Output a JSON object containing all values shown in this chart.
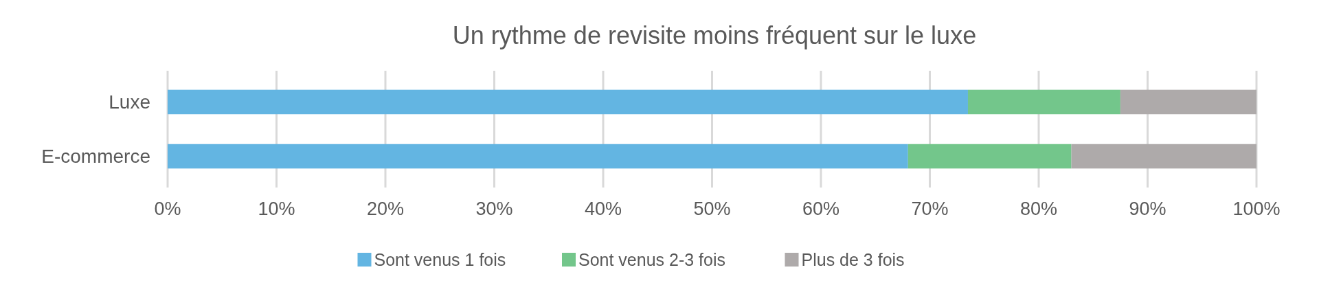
{
  "chart_data": {
    "type": "bar",
    "orientation": "horizontal",
    "stacked": true,
    "title": "Un rythme de revisite moins fréquent sur le luxe",
    "categories": [
      "Luxe",
      "E-commerce"
    ],
    "series": [
      {
        "name": "Sont venus 1 fois",
        "color": "#63b5e2",
        "values": [
          73.5,
          68
        ]
      },
      {
        "name": "Sont venus 2-3 fois",
        "color": "#73c68b",
        "values": [
          14,
          15
        ]
      },
      {
        "name": "Plus de 3 fois",
        "color": "#aeaaaa",
        "values": [
          12.5,
          17
        ]
      }
    ],
    "xlim": [
      0,
      100
    ],
    "xticks": [
      {
        "value": 0,
        "label": "0%"
      },
      {
        "value": 10,
        "label": "10%"
      },
      {
        "value": 20,
        "label": "20%"
      },
      {
        "value": 30,
        "label": "30%"
      },
      {
        "value": 40,
        "label": "40%"
      },
      {
        "value": 50,
        "label": "50%"
      },
      {
        "value": 60,
        "label": "60%"
      },
      {
        "value": 70,
        "label": "70%"
      },
      {
        "value": 80,
        "label": "80%"
      },
      {
        "value": 90,
        "label": "90%"
      },
      {
        "value": 100,
        "label": "100%"
      }
    ],
    "grid": "x",
    "legend": "bottom"
  }
}
